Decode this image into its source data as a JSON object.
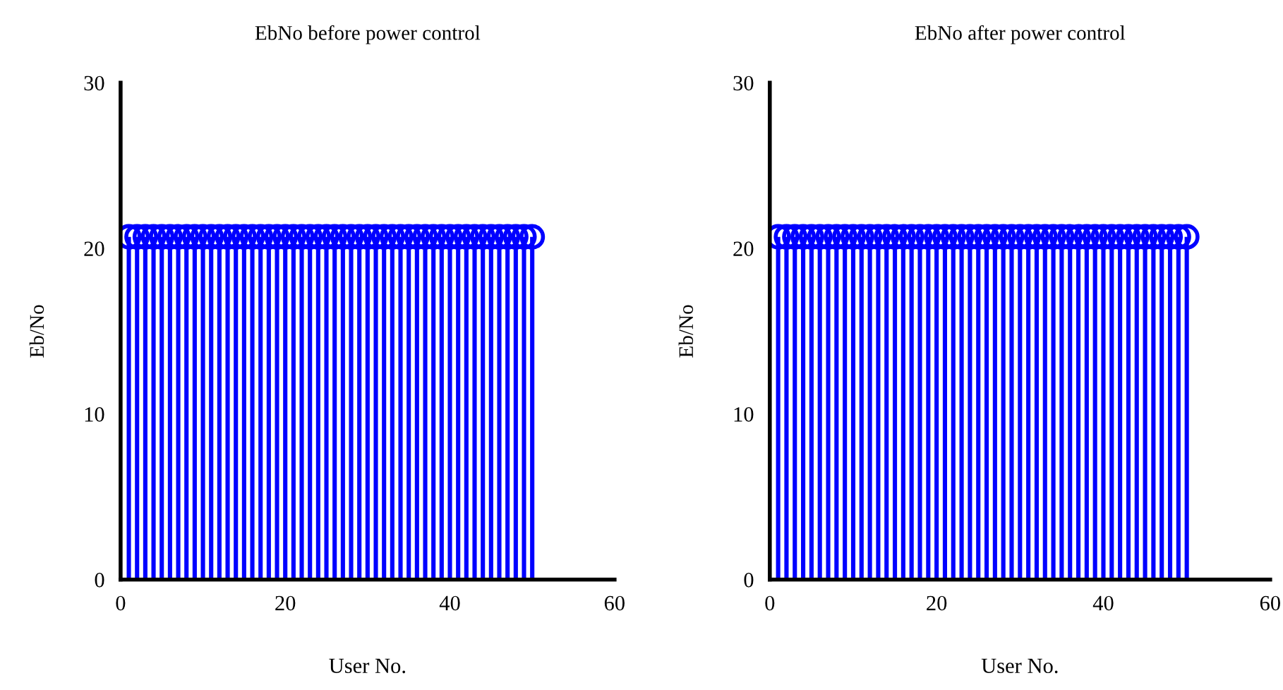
{
  "chart_data": [
    {
      "type": "lollipop",
      "title": "EbNo before power control",
      "xlabel": "User No.",
      "ylabel": "Eb/No",
      "color": "#0000ff",
      "marker": "circle",
      "x": [
        1,
        2,
        3,
        4,
        5,
        6,
        7,
        8,
        9,
        10,
        11,
        12,
        13,
        14,
        15,
        16,
        17,
        18,
        19,
        20,
        21,
        22,
        23,
        24,
        25,
        26,
        27,
        28,
        29,
        30,
        31,
        32,
        33,
        34,
        35,
        36,
        37,
        38,
        39,
        40,
        41,
        42,
        43,
        44,
        45,
        46,
        47,
        48,
        49,
        50
      ],
      "values": [
        20.7,
        20.7,
        20.7,
        20.7,
        20.7,
        20.7,
        20.7,
        20.7,
        20.7,
        20.7,
        20.7,
        20.7,
        20.7,
        20.7,
        20.7,
        20.7,
        20.7,
        20.7,
        20.7,
        20.7,
        20.7,
        20.7,
        20.7,
        20.7,
        20.7,
        20.7,
        20.7,
        20.7,
        20.7,
        20.7,
        20.7,
        20.7,
        20.7,
        20.7,
        20.7,
        20.7,
        20.7,
        20.7,
        20.7,
        20.7,
        20.7,
        20.7,
        20.7,
        20.7,
        20.7,
        20.7,
        20.7,
        20.7,
        20.7,
        20.7
      ],
      "xlim": [
        0,
        60
      ],
      "xticks": [
        0,
        20,
        40,
        60
      ],
      "ylim": [
        0,
        30
      ],
      "yticks": [
        0,
        10,
        20,
        30
      ]
    },
    {
      "type": "lollipop",
      "title": "EbNo after power control",
      "xlabel": "User No.",
      "ylabel": "Eb/No",
      "color": "#0000ff",
      "marker": "circle",
      "x": [
        1,
        2,
        3,
        4,
        5,
        6,
        7,
        8,
        9,
        10,
        11,
        12,
        13,
        14,
        15,
        16,
        17,
        18,
        19,
        20,
        21,
        22,
        23,
        24,
        25,
        26,
        27,
        28,
        29,
        30,
        31,
        32,
        33,
        34,
        35,
        36,
        37,
        38,
        39,
        40,
        41,
        42,
        43,
        44,
        45,
        46,
        47,
        48,
        49,
        50
      ],
      "values": [
        20.7,
        20.7,
        20.7,
        20.7,
        20.7,
        20.7,
        20.7,
        20.7,
        20.7,
        20.7,
        20.7,
        20.7,
        20.7,
        20.7,
        20.7,
        20.7,
        20.7,
        20.7,
        20.7,
        20.7,
        20.7,
        20.7,
        20.7,
        20.7,
        20.7,
        20.7,
        20.7,
        20.7,
        20.7,
        20.7,
        20.7,
        20.7,
        20.7,
        20.7,
        20.7,
        20.7,
        20.7,
        20.7,
        20.7,
        20.7,
        20.7,
        20.7,
        20.7,
        20.7,
        20.7,
        20.7,
        20.7,
        20.7,
        20.7,
        20.7
      ],
      "xlim": [
        0,
        60
      ],
      "xticks": [
        0,
        20,
        40,
        60
      ],
      "ylim": [
        0,
        30
      ],
      "yticks": [
        0,
        10,
        20,
        30
      ]
    }
  ]
}
